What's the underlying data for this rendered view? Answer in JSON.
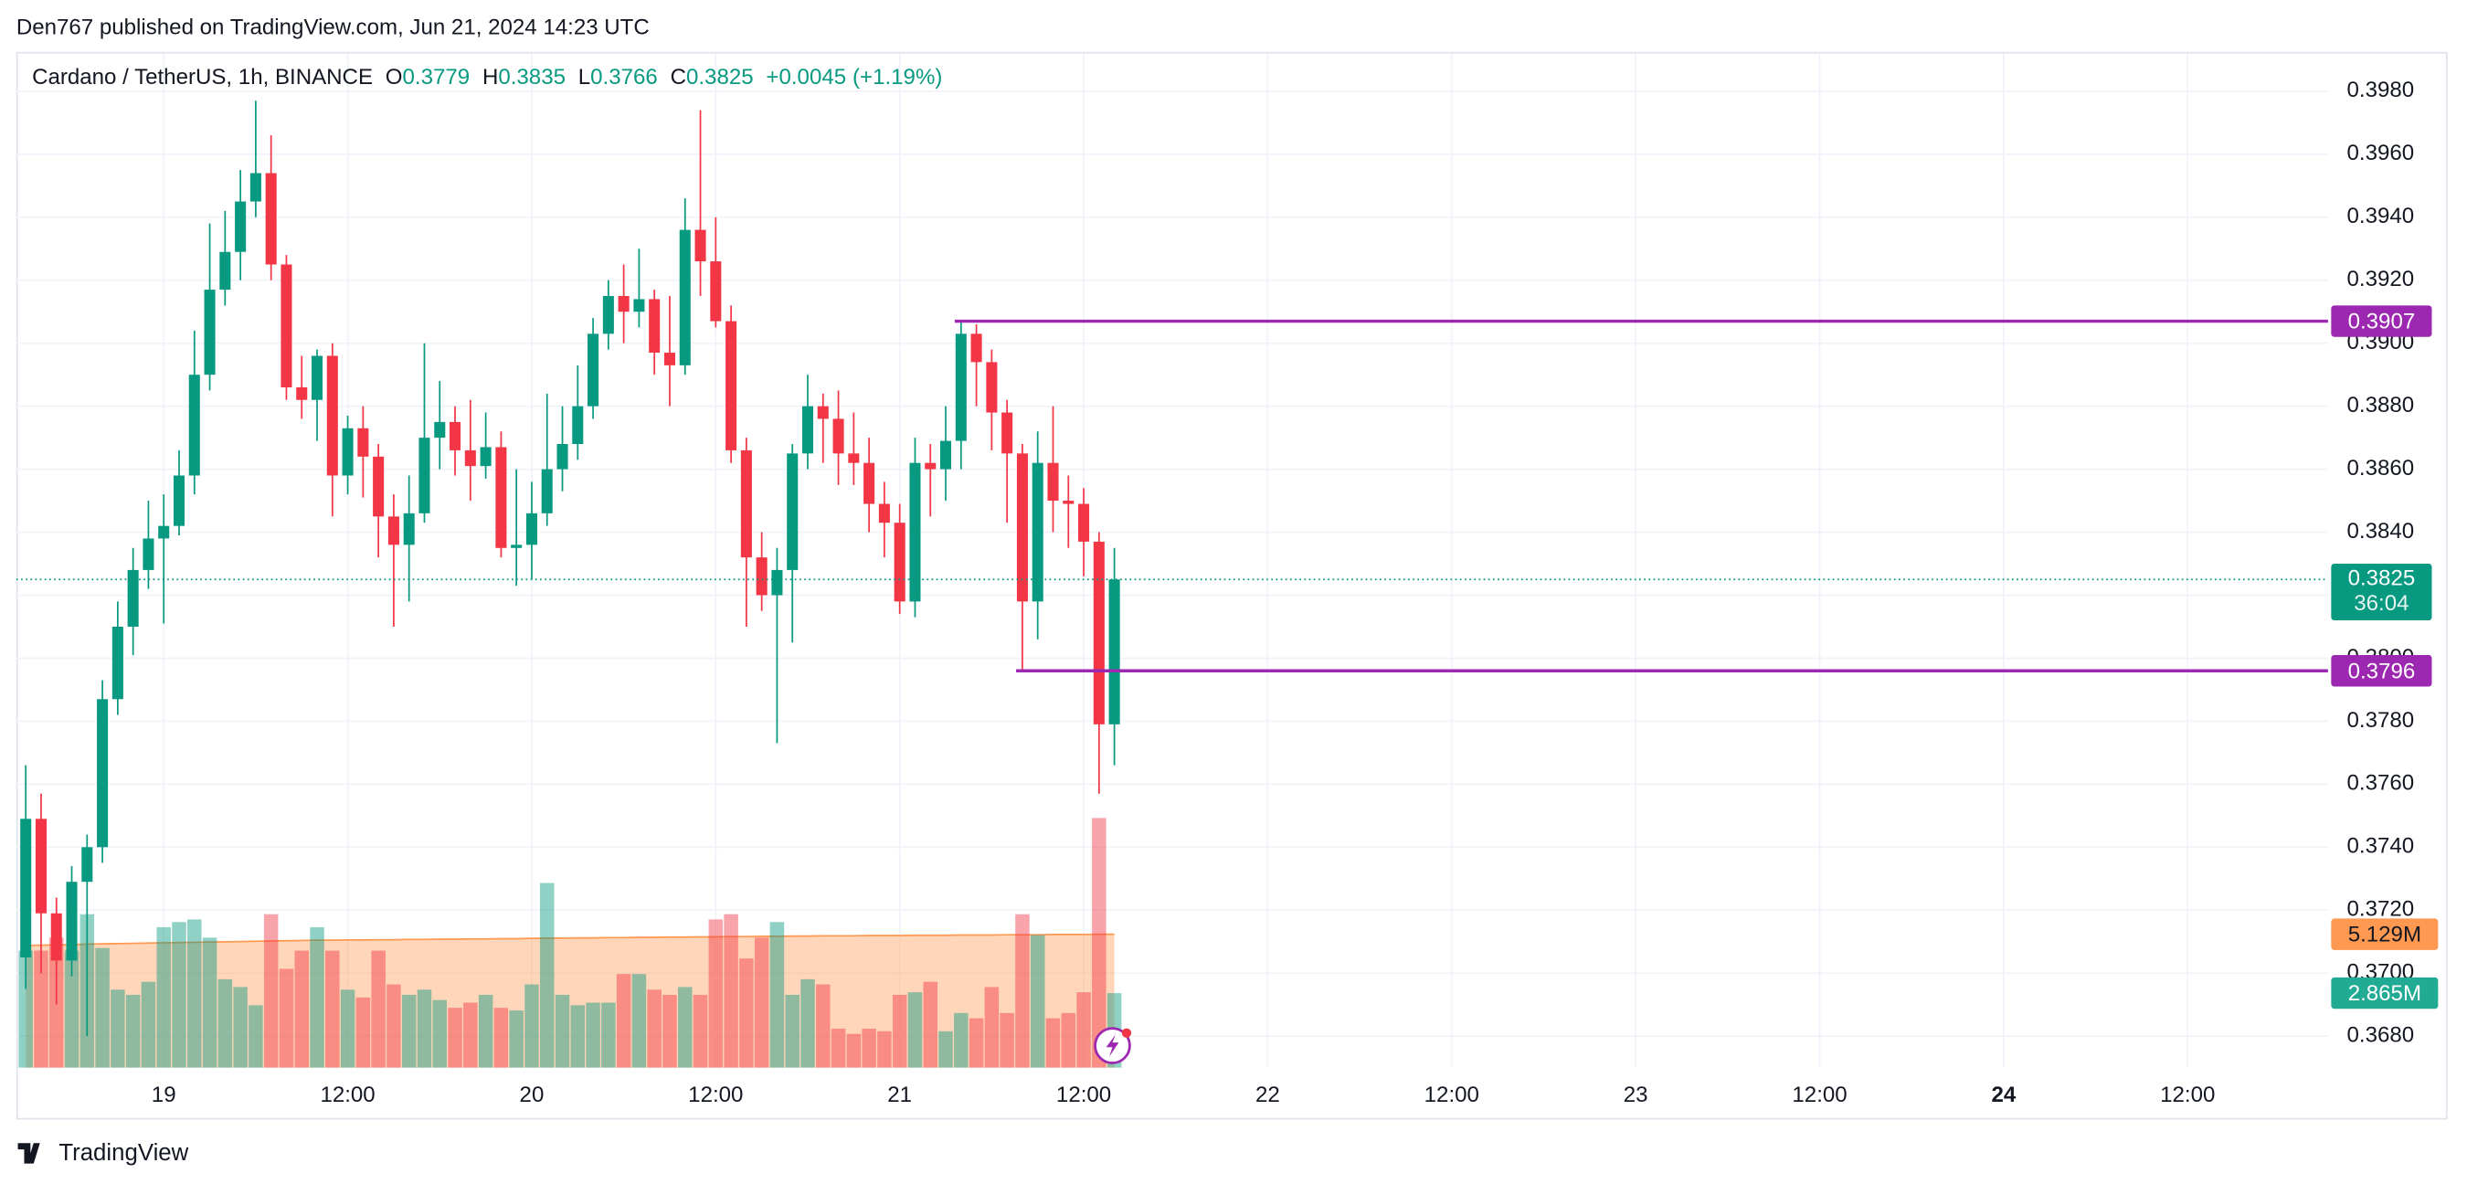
{
  "header": "Den767 published on TradingView.com, Jun 21, 2024 14:23 UTC",
  "footer": "TradingView",
  "chart_data": {
    "type": "candlestick",
    "title": "Cardano / TetherUS, 1h, BINANCE",
    "legend": {
      "items": [
        {
          "key": "O",
          "value": 0.3779
        },
        {
          "key": "H",
          "value": 0.3835
        },
        {
          "key": "L",
          "value": 0.3766
        },
        {
          "key": "C",
          "value": 0.3825
        }
      ],
      "change": "+0.0045",
      "change_pct": "(+1.19%)"
    },
    "up_color": "#089981",
    "down_color": "#f23645",
    "open": [
      0.3705,
      0.3749,
      0.3719,
      0.3704,
      0.3729,
      0.374,
      0.3787,
      0.381,
      0.3828,
      0.3838,
      0.3842,
      0.3858,
      0.389,
      0.3917,
      0.3929,
      0.3945,
      0.3954,
      0.3925,
      0.3886,
      0.3882,
      0.3896,
      0.3858,
      0.3873,
      0.3864,
      0.3845,
      0.3836,
      0.3846,
      0.387,
      0.3875,
      0.3866,
      0.3861,
      0.3867,
      0.3835,
      0.3836,
      0.3846,
      0.386,
      0.3868,
      0.388,
      0.3903,
      0.3915,
      0.391,
      0.3914,
      0.3897,
      0.3893,
      0.3936,
      0.3926,
      0.3907,
      0.3866,
      0.3832,
      0.382,
      0.3828,
      0.3865,
      0.388,
      0.3876,
      0.3865,
      0.3862,
      0.3849,
      0.3843,
      0.3818,
      0.3862,
      0.386,
      0.3869,
      0.3903,
      0.3894,
      0.3878,
      0.3865,
      0.3818,
      0.3862,
      0.385,
      0.3849,
      0.3837,
      0.3779
    ],
    "high": [
      0.3766,
      0.3757,
      0.3724,
      0.3734,
      0.3744,
      0.3793,
      0.3818,
      0.3835,
      0.385,
      0.3852,
      0.3866,
      0.3904,
      0.3938,
      0.3942,
      0.3955,
      0.3977,
      0.3966,
      0.3928,
      0.3896,
      0.3898,
      0.39,
      0.3877,
      0.388,
      0.3868,
      0.3852,
      0.3858,
      0.39,
      0.3888,
      0.388,
      0.3882,
      0.3878,
      0.3872,
      0.386,
      0.3856,
      0.3884,
      0.388,
      0.3893,
      0.3908,
      0.392,
      0.3925,
      0.393,
      0.3917,
      0.3915,
      0.3946,
      0.3974,
      0.394,
      0.3912,
      0.387,
      0.384,
      0.3835,
      0.3868,
      0.389,
      0.3884,
      0.3885,
      0.3878,
      0.387,
      0.3856,
      0.3849,
      0.387,
      0.3868,
      0.388,
      0.3907,
      0.3906,
      0.3898,
      0.3882,
      0.3868,
      0.3872,
      0.388,
      0.3858,
      0.3854,
      0.384,
      0.3835
    ],
    "low": [
      0.3695,
      0.37,
      0.369,
      0.3699,
      0.368,
      0.3735,
      0.3782,
      0.3801,
      0.3822,
      0.3811,
      0.3839,
      0.3852,
      0.3885,
      0.3912,
      0.392,
      0.394,
      0.392,
      0.3882,
      0.3876,
      0.3869,
      0.3845,
      0.3852,
      0.3851,
      0.3832,
      0.381,
      0.3818,
      0.3843,
      0.386,
      0.3858,
      0.385,
      0.3857,
      0.3832,
      0.3823,
      0.3825,
      0.3842,
      0.3853,
      0.3863,
      0.3876,
      0.3898,
      0.39,
      0.3905,
      0.389,
      0.388,
      0.389,
      0.3915,
      0.3905,
      0.3862,
      0.381,
      0.3815,
      0.3773,
      0.3805,
      0.386,
      0.3862,
      0.3855,
      0.3855,
      0.384,
      0.3832,
      0.3814,
      0.3813,
      0.3845,
      0.385,
      0.386,
      0.388,
      0.3866,
      0.3843,
      0.3796,
      0.3806,
      0.384,
      0.3835,
      0.3826,
      0.3757,
      0.3766
    ],
    "close": [
      0.3749,
      0.3719,
      0.3704,
      0.3729,
      0.374,
      0.3787,
      0.381,
      0.3828,
      0.3838,
      0.3842,
      0.3858,
      0.389,
      0.3917,
      0.3929,
      0.3945,
      0.3954,
      0.3925,
      0.3886,
      0.3882,
      0.3896,
      0.3858,
      0.3873,
      0.3864,
      0.3845,
      0.3836,
      0.3846,
      0.387,
      0.3875,
      0.3866,
      0.3861,
      0.3867,
      0.3835,
      0.3836,
      0.3846,
      0.386,
      0.3868,
      0.388,
      0.3903,
      0.3915,
      0.391,
      0.3914,
      0.3897,
      0.3893,
      0.3936,
      0.3926,
      0.3907,
      0.3866,
      0.3832,
      0.382,
      0.3828,
      0.3865,
      0.388,
      0.3876,
      0.3865,
      0.3862,
      0.3849,
      0.3843,
      0.3818,
      0.3862,
      0.386,
      0.3869,
      0.3903,
      0.3894,
      0.3878,
      0.3865,
      0.3818,
      0.3862,
      0.385,
      0.3849,
      0.3837,
      0.3779,
      0.3825
    ],
    "volume": [
      4500000,
      4500000,
      5000000,
      4500000,
      5900000,
      4600000,
      3000000,
      2800000,
      3300000,
      5400000,
      5600000,
      5700000,
      5000000,
      3400000,
      3100000,
      2400000,
      5900000,
      3800000,
      4500000,
      5400000,
      4500000,
      3000000,
      2700000,
      4500000,
      3200000,
      2800000,
      3000000,
      2600000,
      2300000,
      2500000,
      2800000,
      2300000,
      2200000,
      3200000,
      7100000,
      2800000,
      2400000,
      2500000,
      2500000,
      3600000,
      3600000,
      3000000,
      2800000,
      3100000,
      2800000,
      5700000,
      5900000,
      4200000,
      5000000,
      5600000,
      2800000,
      3400000,
      3200000,
      1500000,
      1300000,
      1500000,
      1400000,
      2800000,
      2900000,
      3300000,
      1400000,
      2100000,
      1900000,
      3100000,
      2100000,
      5900000,
      5100000,
      1900000,
      2100000,
      2900000,
      9600000,
      2865000
    ],
    "last_volume_label": "2.865M",
    "volume_ma": [
      4700000,
      4710000,
      4720000,
      4730000,
      4750000,
      4760000,
      4770000,
      4780000,
      4790000,
      4800000,
      4810000,
      4820000,
      4830000,
      4840000,
      4850000,
      4860000,
      4870000,
      4880000,
      4890000,
      4900000,
      4900000,
      4910000,
      4910000,
      4920000,
      4920000,
      4930000,
      4930000,
      4940000,
      4940000,
      4950000,
      4950000,
      4960000,
      4960000,
      4970000,
      4980000,
      4980000,
      4990000,
      4990000,
      5000000,
      5000000,
      5010000,
      5010000,
      5020000,
      5020000,
      5030000,
      5030000,
      5040000,
      5040000,
      5050000,
      5050000,
      5060000,
      5060000,
      5070000,
      5070000,
      5070000,
      5080000,
      5080000,
      5080000,
      5090000,
      5090000,
      5090000,
      5100000,
      5100000,
      5100000,
      5110000,
      5110000,
      5110000,
      5120000,
      5120000,
      5120000,
      5130000,
      5129000
    ],
    "last_volume_ma_label": "5.129M",
    "volume_ma_color": "#ff9850",
    "volume_ylim": [
      0,
      39000000
    ],
    "countdown": "36:04",
    "price_lines": [
      {
        "value": 0.3907,
        "color": "#9c27b0"
      },
      {
        "value": 0.3796,
        "color": "#9c27b0"
      }
    ],
    "ylim": [
      0.367,
      0.3992
    ],
    "yticks": [
      {
        "value": 0.368,
        "label": "0.3680"
      },
      {
        "value": 0.37,
        "label": "0.3700"
      },
      {
        "value": 0.372,
        "label": "0.3720"
      },
      {
        "value": 0.374,
        "label": "0.3740"
      },
      {
        "value": 0.376,
        "label": "0.3760"
      },
      {
        "value": 0.378,
        "label": "0.3780"
      },
      {
        "value": 0.38,
        "label": "0.3800"
      },
      {
        "value": 0.382,
        "label": "0.3820"
      },
      {
        "value": 0.384,
        "label": "0.3840"
      },
      {
        "value": 0.386,
        "label": "0.3860"
      },
      {
        "value": 0.388,
        "label": "0.3880"
      },
      {
        "value": 0.39,
        "label": "0.3900"
      },
      {
        "value": 0.392,
        "label": "0.3920"
      },
      {
        "value": 0.394,
        "label": "0.3940"
      },
      {
        "value": 0.396,
        "label": "0.3960"
      },
      {
        "value": 0.398,
        "label": "0.3980"
      }
    ],
    "xticks": [
      "19",
      "12:00",
      "20",
      "12:00",
      "21",
      "12:00",
      "22",
      "12:00",
      "23",
      "12:00",
      "24",
      "12:00"
    ],
    "grid": true
  }
}
